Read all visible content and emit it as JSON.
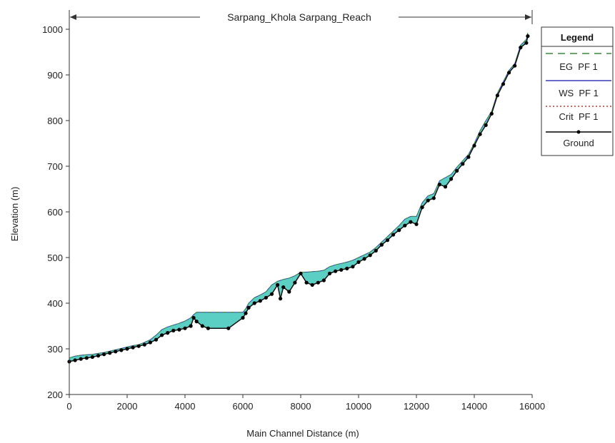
{
  "chart_data": {
    "type": "line",
    "title": "Sarpang_Khola Sarpang_Reach",
    "xlabel": "Main Channel Distance (m)",
    "ylabel": "Elevation (m)",
    "xlim": [
      0,
      16000
    ],
    "ylim": [
      200,
      1000
    ],
    "xticks": [
      "0",
      "2000",
      "4000",
      "6000",
      "8000",
      "10000",
      "12000",
      "14000",
      "16000"
    ],
    "yticks": [
      "200",
      "300",
      "400",
      "500",
      "600",
      "700",
      "800",
      "900",
      "1000"
    ],
    "grid": false,
    "legend_placement": "right",
    "legend": {
      "title": "Legend",
      "entries": [
        {
          "label": "EG  PF 1",
          "color": "#3c8a3c",
          "style": "dashed"
        },
        {
          "label": "WS  PF 1",
          "color": "#3a3ab8",
          "style": "solid"
        },
        {
          "label": "Crit  PF 1",
          "color": "#c0392b",
          "style": "dotted"
        },
        {
          "label": "Ground",
          "color": "#000000",
          "style": "solid-marker"
        }
      ]
    },
    "fill_color": "#5ccfc4",
    "series": [
      {
        "name": "Ground",
        "x": [
          0,
          200,
          400,
          600,
          800,
          1000,
          1200,
          1400,
          1600,
          1800,
          2000,
          2200,
          2400,
          2600,
          2800,
          3000,
          3200,
          3400,
          3600,
          3800,
          4000,
          4200,
          4300,
          4400,
          4600,
          4800,
          5500,
          6000,
          6100,
          6200,
          6400,
          6600,
          6800,
          7000,
          7200,
          7300,
          7400,
          7600,
          7800,
          8000,
          8200,
          8400,
          8600,
          8800,
          9000,
          9200,
          9400,
          9600,
          9800,
          10000,
          10200,
          10400,
          10600,
          10800,
          11000,
          11200,
          11400,
          11600,
          11800,
          12000,
          12200,
          12400,
          12600,
          12800,
          13000,
          13200,
          13400,
          13600,
          13800,
          14000,
          14200,
          14400,
          14600,
          14800,
          15000,
          15200,
          15400,
          15600,
          15800,
          15850
        ],
        "y": [
          272,
          275,
          278,
          280,
          282,
          285,
          288,
          291,
          294,
          297,
          300,
          303,
          306,
          309,
          314,
          320,
          330,
          335,
          340,
          342,
          345,
          350,
          368,
          360,
          350,
          345,
          345,
          368,
          378,
          390,
          400,
          405,
          412,
          420,
          440,
          410,
          435,
          425,
          445,
          465,
          445,
          440,
          445,
          450,
          465,
          470,
          473,
          476,
          480,
          490,
          497,
          505,
          515,
          528,
          538,
          550,
          560,
          570,
          578,
          573,
          610,
          625,
          630,
          660,
          655,
          672,
          690,
          705,
          720,
          745,
          770,
          790,
          815,
          855,
          880,
          905,
          920,
          960,
          970,
          985
        ]
      },
      {
        "name": "WS  PF 1",
        "x": [
          0,
          200,
          400,
          600,
          800,
          1000,
          1200,
          1400,
          1600,
          1800,
          2000,
          2200,
          2400,
          2600,
          2800,
          3000,
          3200,
          3400,
          3600,
          3800,
          4000,
          4200,
          4300,
          4400,
          4600,
          4800,
          5500,
          6000,
          6100,
          6200,
          6400,
          6600,
          6800,
          7000,
          7200,
          7300,
          7400,
          7600,
          7800,
          8000,
          8200,
          8400,
          8600,
          8800,
          9000,
          9200,
          9400,
          9600,
          9800,
          10000,
          10200,
          10400,
          10600,
          10800,
          11000,
          11200,
          11400,
          11600,
          11800,
          12000,
          12200,
          12400,
          12600,
          12800,
          13000,
          13200,
          13400,
          13600,
          13800,
          14000,
          14200,
          14400,
          14600,
          14800,
          15000,
          15200,
          15400,
          15600,
          15800,
          15850
        ],
        "y": [
          280,
          284,
          286,
          287,
          288,
          290,
          292,
          295,
          298,
          301,
          304,
          307,
          309,
          314,
          320,
          330,
          342,
          348,
          352,
          356,
          361,
          368,
          375,
          380,
          380,
          380,
          380,
          380,
          388,
          400,
          412,
          418,
          425,
          440,
          448,
          450,
          452,
          455,
          460,
          468,
          468,
          469,
          470,
          472,
          480,
          484,
          487,
          490,
          494,
          500,
          506,
          512,
          522,
          534,
          546,
          558,
          570,
          584,
          590,
          590,
          620,
          635,
          640,
          668,
          675,
          682,
          698,
          712,
          726,
          750,
          778,
          800,
          820,
          860,
          885,
          910,
          925,
          965,
          978,
          992
        ]
      }
    ]
  }
}
